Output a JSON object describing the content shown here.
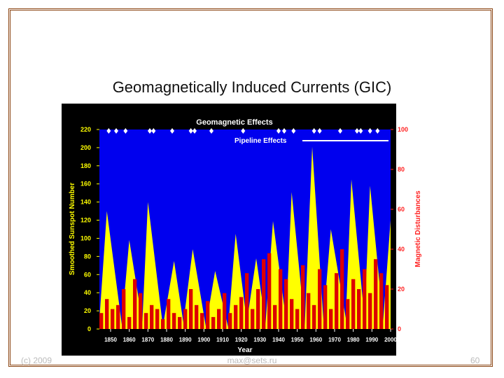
{
  "slide": {
    "title": "Geomagnetically Induced Currents (GIC)",
    "footer_left": "(c) 2009",
    "footer_center": "max@sets.ru",
    "page_number": "60"
  },
  "chart_data": {
    "type": "area",
    "title": "Geomagnetic Effects",
    "annotation": "Pipeline Effects",
    "xlabel": "Year",
    "ylabel": "Smoothed Sunspot Number",
    "y2label": "Magnetic Disturbances",
    "xlim": [
      1844,
      2000
    ],
    "xticks": [
      1850,
      1860,
      1870,
      1880,
      1890,
      1900,
      1910,
      1920,
      1930,
      1940,
      1950,
      1960,
      1970,
      1980,
      1990,
      2000
    ],
    "ylim": [
      0,
      220
    ],
    "yticks": [
      0,
      20,
      40,
      60,
      80,
      100,
      120,
      140,
      160,
      180,
      200,
      220
    ],
    "y2lim": [
      0,
      100
    ],
    "y2ticks": [
      0,
      20,
      40,
      60,
      80,
      100
    ],
    "series": [
      {
        "name": "Smoothed Sunspot Number",
        "color": "#ffff00",
        "x": [
          1844,
          1848,
          1856,
          1860,
          1867,
          1870,
          1878,
          1884,
          1889,
          1894,
          1901,
          1906,
          1913,
          1917,
          1923,
          1928,
          1933,
          1937,
          1944,
          1947,
          1954,
          1958,
          1964,
          1968,
          1976,
          1979,
          1986,
          1989,
          1996,
          2000
        ],
        "values": [
          10,
          130,
          5,
          98,
          8,
          140,
          3,
          75,
          7,
          88,
          3,
          64,
          2,
          105,
          8,
          78,
          6,
          119,
          10,
          151,
          4,
          201,
          10,
          110,
          12,
          165,
          12,
          158,
          9,
          120
        ]
      },
      {
        "name": "Magnetic Disturbances",
        "color": "#dd0000",
        "axis": "y2",
        "x": [
          1845,
          1848,
          1851,
          1854,
          1857,
          1860,
          1863,
          1866,
          1869,
          1872,
          1875,
          1878,
          1881,
          1884,
          1887,
          1890,
          1893,
          1896,
          1899,
          1902,
          1905,
          1908,
          1911,
          1914,
          1917,
          1920,
          1923,
          1926,
          1929,
          1932,
          1935,
          1938,
          1941,
          1944,
          1947,
          1950,
          1953,
          1956,
          1959,
          1962,
          1965,
          1968,
          1971,
          1974,
          1977,
          1980,
          1983,
          1986,
          1989,
          1992,
          1995,
          1998
        ],
        "values": [
          8,
          15,
          10,
          12,
          20,
          6,
          25,
          18,
          8,
          12,
          10,
          5,
          15,
          8,
          6,
          10,
          20,
          12,
          8,
          14,
          6,
          10,
          18,
          8,
          12,
          16,
          28,
          10,
          20,
          35,
          38,
          12,
          30,
          25,
          15,
          10,
          32,
          18,
          12,
          30,
          22,
          10,
          28,
          40,
          15,
          25,
          20,
          30,
          18,
          35,
          28,
          22
        ]
      }
    ],
    "geomagnetic_effects": [
      1849,
      1853,
      1858,
      1871,
      1873,
      1883,
      1893,
      1895,
      1904,
      1921,
      1940,
      1943,
      1948,
      1959,
      1962,
      1973,
      1982,
      1984,
      1989,
      1993
    ],
    "plot_background": "#0000ee"
  }
}
